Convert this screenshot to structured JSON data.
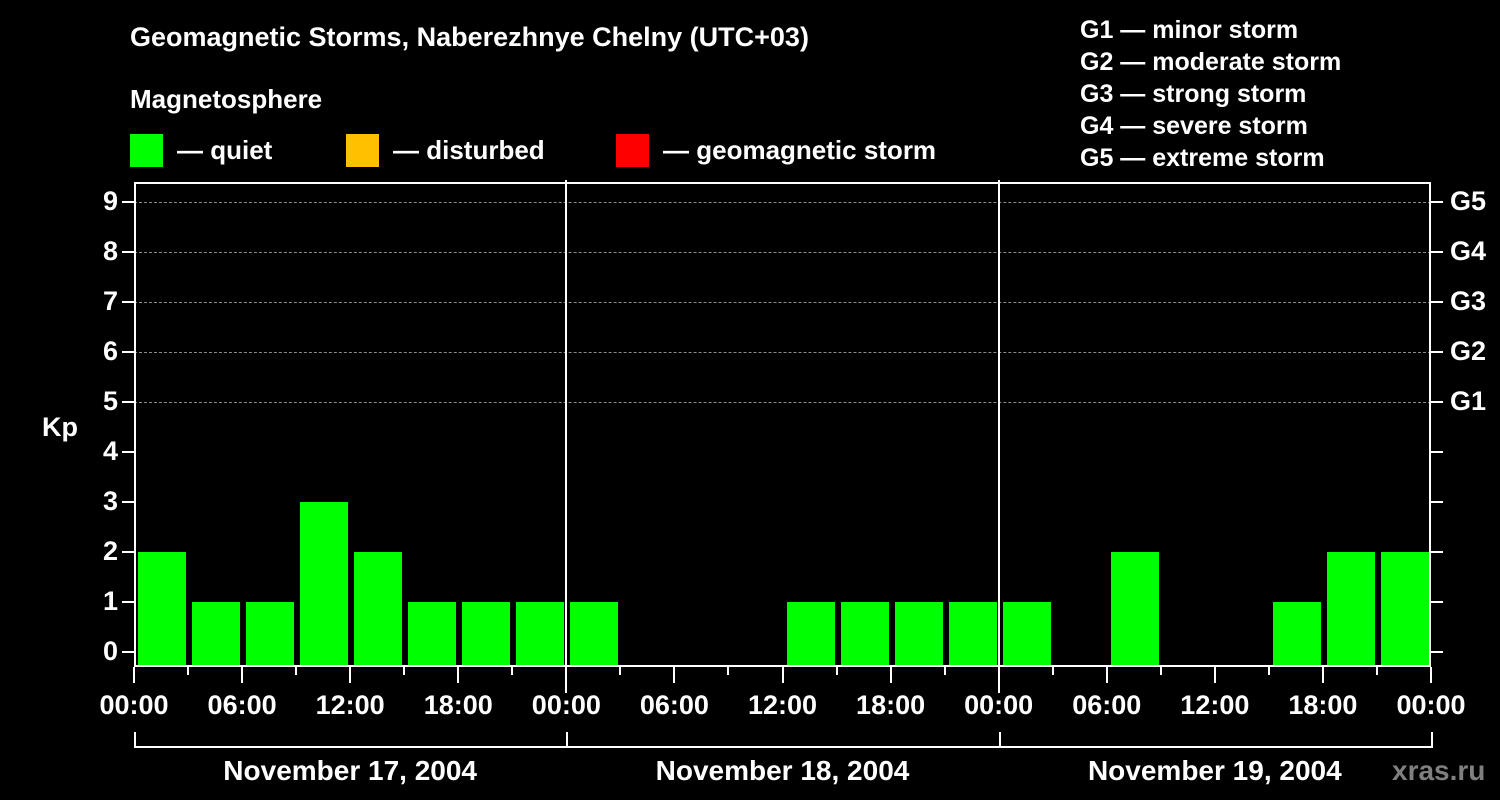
{
  "header": {
    "title": "Geomagnetic Storms, Naberezhnye Chelny (UTC+03)",
    "subtitle": "Magnetosphere"
  },
  "legend": [
    {
      "label": "— quiet",
      "color": "#00ff00"
    },
    {
      "label": "— disturbed",
      "color": "#ffc000"
    },
    {
      "label": "— geomagnetic storm",
      "color": "#ff0000"
    }
  ],
  "storm_scale": [
    "G1 — minor storm",
    "G2 — moderate storm",
    "G3 — strong storm",
    "G4 — severe storm",
    "G5 — extreme storm"
  ],
  "axes": {
    "ylabel": "Kp",
    "yticks": [
      "0",
      "1",
      "2",
      "3",
      "4",
      "5",
      "6",
      "7",
      "8",
      "9"
    ],
    "right_labels": {
      "5": "G1",
      "6": "G2",
      "7": "G3",
      "8": "G4",
      "9": "G5"
    },
    "xticks": [
      "00:00",
      "06:00",
      "12:00",
      "18:00",
      "00:00",
      "06:00",
      "12:00",
      "18:00",
      "00:00",
      "06:00",
      "12:00",
      "18:00",
      "00:00"
    ],
    "days": [
      "November 17, 2004",
      "November 18, 2004",
      "November 19, 2004"
    ]
  },
  "watermark": "xras.ru",
  "chart_data": {
    "type": "bar",
    "title": "Geomagnetic Storms, Naberezhnye Chelny (UTC+03)",
    "xlabel": "",
    "ylabel": "Kp",
    "ylim": [
      0,
      9
    ],
    "grid": "dashed horizontal at Kp 5-9",
    "interval_hours": 3,
    "categories": [
      "Nov 17 00-03",
      "Nov 17 03-06",
      "Nov 17 06-09",
      "Nov 17 09-12",
      "Nov 17 12-15",
      "Nov 17 15-18",
      "Nov 17 18-21",
      "Nov 17 21-24",
      "Nov 18 00-03",
      "Nov 18 03-06",
      "Nov 18 06-09",
      "Nov 18 09-12",
      "Nov 18 12-15",
      "Nov 18 15-18",
      "Nov 18 18-21",
      "Nov 18 21-24",
      "Nov 19 00-03",
      "Nov 19 03-06",
      "Nov 19 06-09",
      "Nov 19 09-12",
      "Nov 19 12-15",
      "Nov 19 15-18",
      "Nov 19 18-21",
      "Nov 19 21-24"
    ],
    "values": [
      2,
      1,
      1,
      3,
      2,
      1,
      1,
      1,
      1,
      0,
      0,
      0,
      1,
      1,
      1,
      1,
      1,
      0,
      2,
      0,
      0,
      1,
      2,
      2
    ],
    "bar_color": "#00ff00",
    "legend": [
      "quiet",
      "disturbed",
      "geomagnetic storm"
    ],
    "legend_position": "top"
  }
}
